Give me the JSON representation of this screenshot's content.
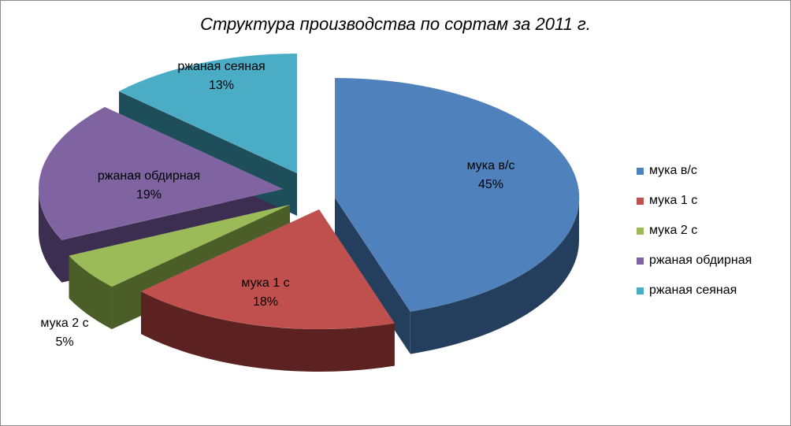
{
  "chart_data": {
    "type": "pie",
    "title": "Структура производства по сортам за 2011 г.",
    "categories": [
      "мука в/с",
      "мука 1 с",
      "мука 2 с",
      "ржаная обдирная",
      "ржаная сеяная"
    ],
    "values": [
      45,
      18,
      5,
      19,
      13
    ],
    "value_labels": [
      "45%",
      "18%",
      "5%",
      "19%",
      "13%"
    ],
    "colors": [
      "#4f81bd",
      "#c0504d",
      "#9bbb59",
      "#8064a2",
      "#4bacc6"
    ],
    "side_colors": [
      "#243e5e",
      "#5c2221",
      "#4b5e27",
      "#3c2e50",
      "#1f4e5b"
    ],
    "legend_position": "right",
    "style": "exploded 3D pie"
  }
}
